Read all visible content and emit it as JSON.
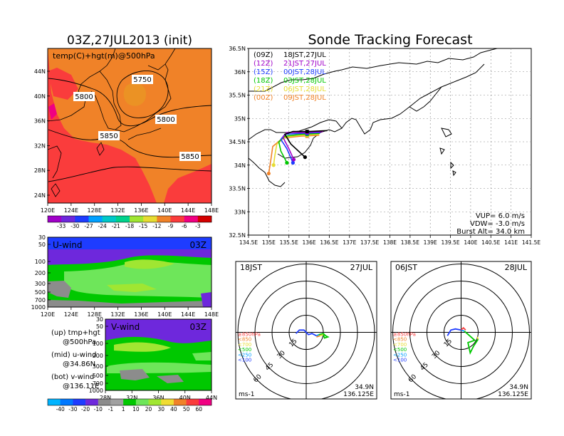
{
  "main_title": "Sonde Tracking Forecast",
  "top_left": {
    "title": "03Z,27JUL2013 (init)",
    "field_label": "temp(C)+hgt(m)@500hPa",
    "lat_ticks": [
      "44N",
      "40N",
      "36N",
      "32N",
      "28N",
      "24N"
    ],
    "lon_ticks": [
      "120E",
      "124E",
      "128E",
      "132E",
      "136E",
      "140E",
      "144E",
      "148E"
    ],
    "contours": [
      "5800",
      "5750",
      "5800",
      "5850",
      "5850"
    ],
    "colorbar": [
      "-33",
      "-30",
      "-27",
      "-24",
      "-21",
      "-18",
      "-15",
      "-12",
      "-9",
      "-6",
      "-3"
    ],
    "colorbar_colors": [
      "#a000c8",
      "#6e28dc",
      "#1e3cff",
      "#00a0ff",
      "#00c8c8",
      "#00d28c",
      "#a0e632",
      "#e6dc32",
      "#f08228",
      "#fa3c3c",
      "#f00082",
      "#d40000"
    ]
  },
  "uwind": {
    "label": "U-wind",
    "time": "03Z",
    "p_ticks": [
      "30",
      "50",
      "100",
      "200",
      "300",
      "500",
      "700",
      "1000"
    ],
    "lon_ticks": [
      "120E",
      "124E",
      "128E",
      "132E",
      "136E",
      "140E",
      "144E",
      "148E"
    ]
  },
  "vwind": {
    "label": "V-wind",
    "time": "03Z",
    "p_ticks": [
      "30",
      "50",
      "100",
      "200",
      "300",
      "500",
      "700",
      "1000"
    ],
    "lat_ticks": [
      "28N",
      "32N",
      "36N",
      "40N",
      "44N"
    ],
    "colorbar": [
      "-40",
      "-30",
      "-20",
      "-10",
      "-1",
      "1",
      "10",
      "20",
      "30",
      "40",
      "50",
      "60"
    ],
    "colorbar_colors": [
      "#00b4ff",
      "#0078ff",
      "#1e3cff",
      "#6e28dc",
      "#8c8c8c",
      "#a0a0a0",
      "#00c800",
      "#6ee65a",
      "#a0e632",
      "#f0dc32",
      "#f08228",
      "#fa3c3c",
      "#f00082"
    ]
  },
  "legend_notes": [
    {
      "a": "(up) tmp+hgt",
      "b": "@500hPa"
    },
    {
      "a": "(mid) u-wind",
      "b": "@34.86N"
    },
    {
      "a": "(bot) v-wind",
      "b": "@136.11E"
    }
  ],
  "track_map": {
    "lat_ticks": [
      "36.5N",
      "36N",
      "35.5N",
      "35N",
      "34.5N",
      "34N",
      "33.5N",
      "33N",
      "32.5N"
    ],
    "lon_ticks": [
      "134.5E",
      "135E",
      "135.5E",
      "136E",
      "136.5E",
      "137E",
      "137.5E",
      "138E",
      "138.5E",
      "139E",
      "139.5E",
      "140E",
      "140.5E",
      "141E",
      "141.5E"
    ],
    "legend": [
      {
        "run": "(09Z)",
        "time": "18JST,27JUL",
        "color": "#000000"
      },
      {
        "run": "(12Z)",
        "time": "21JST,27JUL",
        "color": "#a000c8"
      },
      {
        "run": "(15Z)",
        "time": "00JST,28JUL",
        "color": "#1e3cff"
      },
      {
        "run": "(18Z)",
        "time": "03JST,28JUL",
        "color": "#00c800"
      },
      {
        "run": "(21Z)",
        "time": "06JST,28JUL",
        "color": "#e6dc32"
      },
      {
        "run": "(00Z)",
        "time": "09JST,28JUL",
        "color": "#f08228"
      }
    ],
    "params": [
      "VUP= 6.0 m/s",
      "VDW= -3.0 m/s",
      "Burst Alt= 34.0 km"
    ]
  },
  "hodo_left": {
    "time": "18JST",
    "date": "27JUL",
    "rings": [
      "15",
      "30",
      "45",
      "60"
    ],
    "levels": [
      "≥850hPa",
      "<850",
      "<700",
      "<500",
      "<250",
      "<100"
    ],
    "level_colors": [
      "#fa3c3c",
      "#f08228",
      "#e6dc32",
      "#00c800",
      "#00a0ff",
      "#1e3cff"
    ],
    "unit": "ms-1",
    "lat": "34.9N",
    "lon": "136.125E"
  },
  "hodo_right": {
    "time": "06JST",
    "date": "28JUL",
    "rings": [
      "15",
      "30",
      "45",
      "60"
    ],
    "levels": [
      "≥850hPa",
      "<850",
      "<700",
      "<500",
      "<250",
      "<100"
    ],
    "level_colors": [
      "#fa3c3c",
      "#f08228",
      "#e6dc32",
      "#00c800",
      "#00a0ff",
      "#1e3cff"
    ],
    "unit": "ms-1",
    "lat": "34.9N",
    "lon": "136.125E"
  }
}
